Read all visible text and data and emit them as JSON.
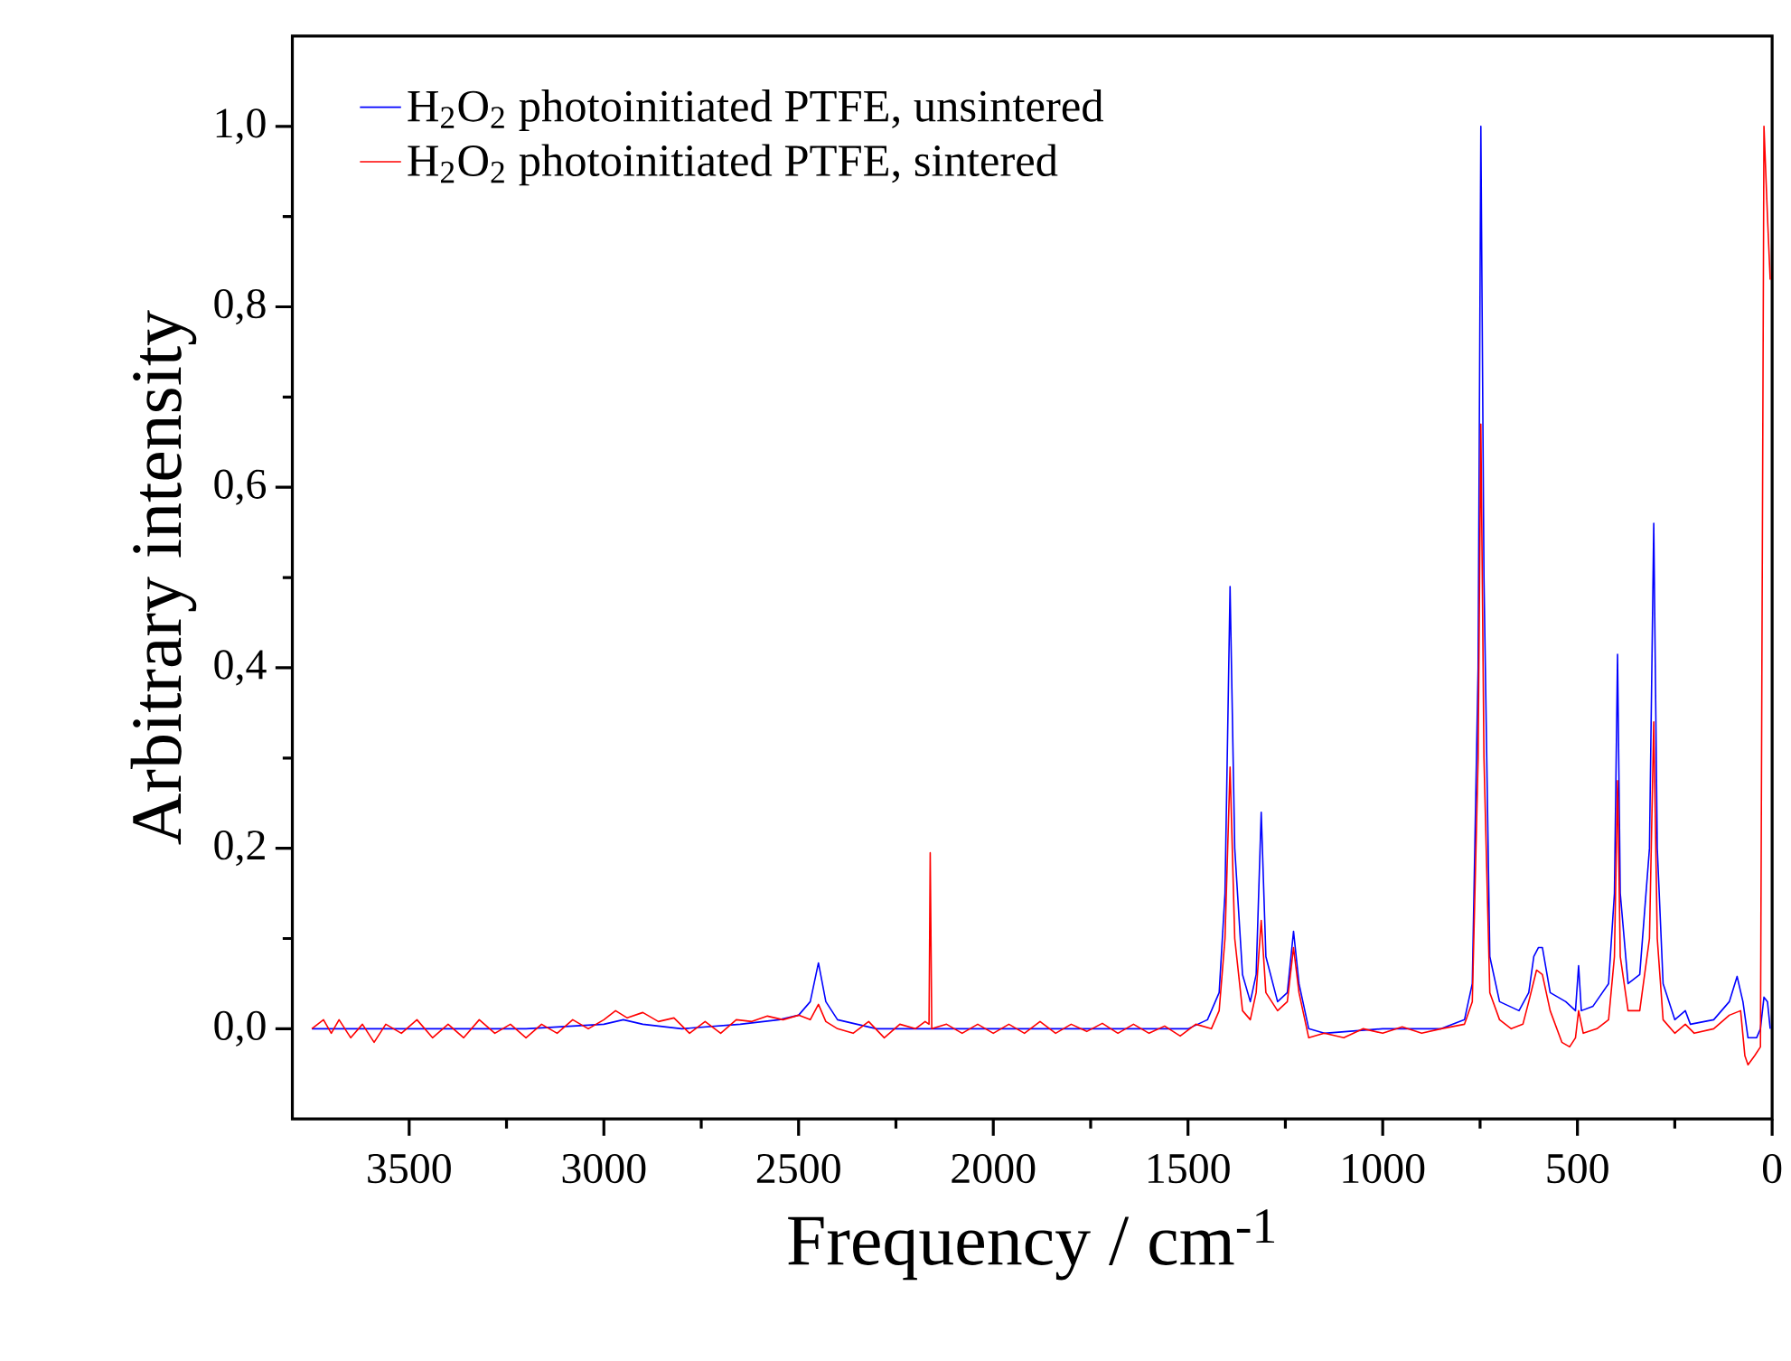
{
  "chart_data": {
    "type": "line",
    "xlabel": "Frequency / cm$^{-1}$",
    "ylabel": "Arbitrary intensity",
    "xlim": [
      3800,
      0
    ],
    "ylim": [
      -0.1,
      1.1
    ],
    "xticks": [
      3500,
      3000,
      2500,
      2000,
      1500,
      1000,
      500,
      0
    ],
    "yticks": [
      {
        "value": 0,
        "label": "0,0"
      },
      {
        "value": 0.2,
        "label": "0,2"
      },
      {
        "value": 0.4,
        "label": "0,4"
      },
      {
        "value": 0.6,
        "label": "0,6"
      },
      {
        "value": 0.8,
        "label": "0,8"
      },
      {
        "value": 1.0,
        "label": "1,0"
      }
    ],
    "grid": false,
    "legend": "top left",
    "marker": "none",
    "line_style": "solid",
    "series": [
      {
        "name": "H$_{2}$O$_{2}$ photoinitiated PTFE, unsintered",
        "color": "#0000ff",
        "x": [
          3750,
          3500,
          3200,
          3000,
          2950,
          2900,
          2800,
          2650,
          2550,
          2500,
          2470,
          2449,
          2430,
          2400,
          2300,
          2160,
          2000,
          1800,
          1600,
          1500,
          1450,
          1420,
          1405,
          1392,
          1380,
          1360,
          1340,
          1325,
          1312,
          1300,
          1270,
          1245,
          1229,
          1215,
          1190,
          1150,
          1000,
          850,
          790,
          770,
          755,
          748,
          740,
          725,
          700,
          650,
          625,
          612,
          600,
          590,
          570,
          530,
          505,
          497,
          490,
          460,
          420,
          405,
          397,
          390,
          370,
          340,
          315,
          304,
          295,
          280,
          250,
          223,
          210,
          150,
          110,
          90,
          75,
          62,
          40,
          30,
          21,
          12,
          5
        ],
        "values": [
          0.0,
          0.0,
          0.0,
          0.005,
          0.01,
          0.005,
          0.0,
          0.005,
          0.01,
          0.015,
          0.03,
          0.073,
          0.03,
          0.01,
          0.0,
          0.0,
          0.0,
          0.0,
          0.0,
          0.0,
          0.01,
          0.04,
          0.15,
          0.49,
          0.2,
          0.06,
          0.03,
          0.06,
          0.24,
          0.08,
          0.03,
          0.04,
          0.108,
          0.05,
          0.0,
          -0.005,
          0.0,
          0.0,
          0.01,
          0.05,
          0.4,
          1.0,
          0.5,
          0.08,
          0.03,
          0.02,
          0.04,
          0.08,
          0.09,
          0.09,
          0.04,
          0.03,
          0.02,
          0.07,
          0.02,
          0.025,
          0.05,
          0.15,
          0.415,
          0.15,
          0.05,
          0.06,
          0.2,
          0.56,
          0.2,
          0.05,
          0.01,
          0.02,
          0.005,
          0.01,
          0.03,
          0.058,
          0.03,
          -0.01,
          -0.01,
          0.0,
          0.035,
          0.03,
          0.0
        ]
      },
      {
        "name": "H$_{2}$O$_{2}$ photoinitiated PTFE, sintered",
        "color": "#ff0000",
        "x": [
          3750,
          3720,
          3700,
          3680,
          3650,
          3620,
          3590,
          3560,
          3520,
          3480,
          3440,
          3400,
          3360,
          3320,
          3280,
          3240,
          3200,
          3160,
          3120,
          3080,
          3040,
          3000,
          2970,
          2940,
          2900,
          2860,
          2820,
          2780,
          2740,
          2700,
          2660,
          2620,
          2580,
          2540,
          2500,
          2470,
          2449,
          2430,
          2400,
          2360,
          2320,
          2280,
          2240,
          2200,
          2175,
          2165,
          2162,
          2158,
          2120,
          2080,
          2040,
          2000,
          1960,
          1920,
          1880,
          1840,
          1800,
          1760,
          1720,
          1680,
          1640,
          1600,
          1560,
          1520,
          1480,
          1440,
          1420,
          1405,
          1392,
          1380,
          1360,
          1340,
          1325,
          1312,
          1300,
          1270,
          1245,
          1229,
          1215,
          1190,
          1150,
          1100,
          1050,
          1000,
          950,
          900,
          850,
          790,
          770,
          755,
          748,
          740,
          725,
          700,
          670,
          640,
          625,
          605,
          590,
          570,
          540,
          520,
          505,
          497,
          485,
          450,
          420,
          405,
          397,
          390,
          370,
          340,
          315,
          304,
          295,
          280,
          250,
          223,
          200,
          150,
          110,
          81,
          70,
          62,
          45,
          30,
          21,
          12,
          5
        ],
        "values": [
          0.0,
          0.01,
          -0.005,
          0.01,
          -0.01,
          0.005,
          -0.015,
          0.005,
          -0.005,
          0.01,
          -0.01,
          0.005,
          -0.01,
          0.01,
          -0.005,
          0.005,
          -0.01,
          0.005,
          -0.005,
          0.01,
          0.0,
          0.01,
          0.02,
          0.012,
          0.018,
          0.008,
          0.012,
          -0.005,
          0.008,
          -0.005,
          0.01,
          0.008,
          0.014,
          0.01,
          0.015,
          0.01,
          0.027,
          0.008,
          0.0,
          -0.005,
          0.008,
          -0.01,
          0.005,
          0.0,
          0.008,
          0.005,
          0.195,
          0.0,
          0.005,
          -0.005,
          0.005,
          -0.005,
          0.005,
          -0.005,
          0.008,
          -0.005,
          0.005,
          -0.003,
          0.006,
          -0.005,
          0.005,
          -0.005,
          0.003,
          -0.008,
          0.005,
          0.0,
          0.02,
          0.1,
          0.29,
          0.1,
          0.02,
          0.01,
          0.04,
          0.12,
          0.04,
          0.02,
          0.03,
          0.09,
          0.04,
          -0.01,
          -0.005,
          -0.01,
          0.0,
          -0.005,
          0.002,
          -0.005,
          0.0,
          0.005,
          0.03,
          0.3,
          0.67,
          0.3,
          0.04,
          0.01,
          0.0,
          0.005,
          0.03,
          0.065,
          0.06,
          0.02,
          -0.015,
          -0.02,
          -0.01,
          0.02,
          -0.005,
          0.0,
          0.01,
          0.08,
          0.275,
          0.08,
          0.02,
          0.02,
          0.1,
          0.34,
          0.1,
          0.01,
          -0.005,
          0.005,
          -0.005,
          0.0,
          0.015,
          0.02,
          -0.03,
          -0.04,
          -0.03,
          -0.02,
          1.0,
          0.9,
          0.83
        ]
      }
    ]
  }
}
